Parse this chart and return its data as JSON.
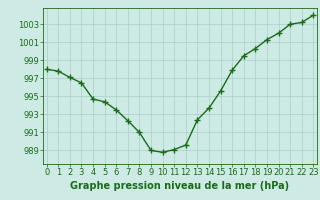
{
  "x": [
    0,
    1,
    2,
    3,
    4,
    5,
    6,
    7,
    8,
    9,
    10,
    11,
    12,
    13,
    14,
    15,
    16,
    17,
    18,
    19,
    20,
    21,
    22,
    23
  ],
  "y": [
    998.0,
    997.8,
    997.1,
    996.5,
    994.7,
    994.4,
    993.5,
    992.3,
    991.0,
    989.0,
    988.8,
    989.1,
    989.6,
    992.4,
    993.7,
    995.6,
    997.9,
    999.5,
    1000.3,
    1001.3,
    1002.0,
    1003.0,
    1003.2,
    1004.0
  ],
  "line_color": "#1a6b1a",
  "marker": "+",
  "background_color": "#ceeae4",
  "grid_color": "#a8cfc8",
  "xlabel": "Graphe pression niveau de la mer (hPa)",
  "ylim": [
    987.5,
    1004.8
  ],
  "xlim": [
    -0.3,
    23.3
  ],
  "yticks": [
    989,
    991,
    993,
    995,
    997,
    999,
    1001,
    1003
  ],
  "xticks": [
    0,
    1,
    2,
    3,
    4,
    5,
    6,
    7,
    8,
    9,
    10,
    11,
    12,
    13,
    14,
    15,
    16,
    17,
    18,
    19,
    20,
    21,
    22,
    23
  ],
  "xlabel_fontsize": 7,
  "tick_fontsize": 6,
  "line_width": 1.0,
  "marker_size": 4,
  "marker_edge_width": 1.0
}
